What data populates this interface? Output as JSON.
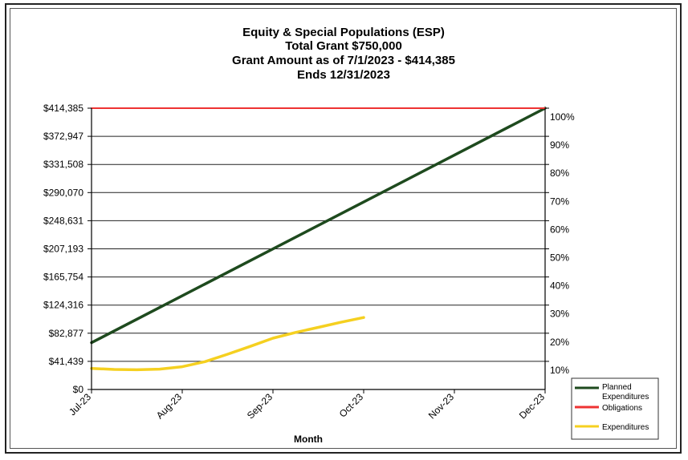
{
  "chart_data": {
    "type": "line",
    "title_lines": [
      "Equity & Special Populations (ESP)",
      "Total Grant  $750,000",
      "Grant Amount as of 7/1/2023 - $414,385",
      "Ends 12/31/2023"
    ],
    "xlabel": "Month",
    "ylabel": "",
    "categories": [
      "Jul-23",
      "Aug-23",
      "Sep-23",
      "Oct-23",
      "Nov-23",
      "Dec-23"
    ],
    "ylim": [
      0,
      414385
    ],
    "y_ticks": [
      0,
      41439,
      82877,
      124316,
      165754,
      207193,
      248631,
      290070,
      331508,
      372947,
      414385
    ],
    "y_tick_labels": [
      "$0",
      "$41,439",
      "$82,877",
      "$124,316",
      "$165,754",
      "$207,193",
      "$248,631",
      "$290,070",
      "$331,508",
      "$372,947",
      "$414,385"
    ],
    "y2_ticks": [
      41439,
      82877,
      124316,
      165754,
      207193,
      248631,
      290070,
      331508,
      372947,
      414385
    ],
    "y2_tick_labels": [
      "10%",
      "20%",
      "30%",
      "40%",
      "50%",
      "60%",
      "70%",
      "80%",
      "90%",
      "100%"
    ],
    "grid": true,
    "legend_position": "bottom-right",
    "series": [
      {
        "name": "Planned Expenditures",
        "color": "#1e4a1e",
        "points": [
          [
            0,
            69000
          ],
          [
            5,
            414385
          ]
        ]
      },
      {
        "name": "Obligations",
        "color": "#ee3333",
        "points": [
          [
            0,
            414385
          ],
          [
            5,
            414385
          ]
        ]
      },
      {
        "name": "Expenditures",
        "color": "#f5d020",
        "points": [
          [
            0,
            31000
          ],
          [
            0.25,
            29500
          ],
          [
            0.5,
            29000
          ],
          [
            0.75,
            30000
          ],
          [
            1,
            33500
          ],
          [
            1.25,
            41000
          ],
          [
            1.5,
            52000
          ],
          [
            1.75,
            63500
          ],
          [
            2,
            75500
          ],
          [
            2.25,
            84000
          ],
          [
            2.5,
            91500
          ],
          [
            2.75,
            99000
          ],
          [
            3,
            106000
          ]
        ]
      }
    ]
  }
}
